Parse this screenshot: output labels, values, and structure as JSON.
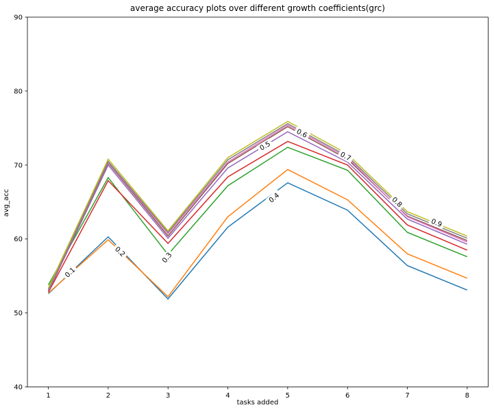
{
  "background_color": "#ffffff",
  "chart_data": {
    "type": "line",
    "title": "average accuracy plots over different growth coefficients(grc)",
    "xlabel": "tasks added",
    "ylabel": "avg_acc",
    "x": [
      1,
      2,
      3,
      4,
      5,
      6,
      7,
      8
    ],
    "xticks": [
      1,
      2,
      3,
      4,
      5,
      6,
      7,
      8
    ],
    "yticks": [
      40,
      50,
      60,
      70,
      80,
      90
    ],
    "xlim": [
      0.65,
      8.35
    ],
    "ylim": [
      40,
      90
    ],
    "grid": false,
    "legend_position": "inline line labels",
    "series": [
      {
        "name": "0.1",
        "color": "#1f77b4",
        "values": [
          52.6,
          60.3,
          51.9,
          61.6,
          67.6,
          63.9,
          56.4,
          53.1
        ],
        "label": {
          "x": 1.36,
          "y": 55.5,
          "angle": -44
        }
      },
      {
        "name": "0.2",
        "color": "#ff7f0e",
        "values": [
          52.7,
          59.9,
          52.2,
          63.0,
          69.4,
          65.3,
          58.0,
          54.7
        ],
        "label": {
          "x": 2.2,
          "y": 58.3,
          "angle": 44
        }
      },
      {
        "name": "0.3",
        "color": "#2ca02c",
        "values": [
          53.8,
          68.3,
          57.9,
          67.2,
          72.4,
          69.3,
          60.9,
          57.6
        ],
        "label": {
          "x": 2.98,
          "y": 57.5,
          "angle": -52
        }
      },
      {
        "name": "0.4",
        "color": "#d62728",
        "values": [
          52.8,
          67.9,
          59.4,
          68.4,
          73.2,
          70.0,
          61.9,
          58.5
        ],
        "label": {
          "x": 4.77,
          "y": 65.6,
          "angle": -40
        }
      },
      {
        "name": "0.5",
        "color": "#9467bd",
        "values": [
          52.9,
          70.0,
          60.1,
          69.6,
          74.5,
          70.4,
          62.7,
          59.3
        ],
        "label": {
          "x": 4.62,
          "y": 72.6,
          "angle": -31
        }
      },
      {
        "name": "0.6",
        "color": "#8c564b",
        "values": [
          53.0,
          70.3,
          60.4,
          70.2,
          75.2,
          70.8,
          63.1,
          59.8
        ],
        "label": {
          "x": 5.24,
          "y": 74.3,
          "angle": 28
        }
      },
      {
        "name": "0.7",
        "color": "#e377c2",
        "values": [
          53.1,
          70.4,
          60.7,
          70.4,
          75.4,
          71.0,
          63.0,
          59.6
        ],
        "label": {
          "x": 5.97,
          "y": 71.2,
          "angle": 28
        }
      },
      {
        "name": "0.8",
        "color": "#7f7f7f",
        "values": [
          53.2,
          70.5,
          60.9,
          70.7,
          75.6,
          71.2,
          63.4,
          60.1
        ],
        "label": {
          "x": 6.83,
          "y": 65.0,
          "angle": 44
        }
      },
      {
        "name": "0.9",
        "color": "#bcbd22",
        "values": [
          53.4,
          70.8,
          61.1,
          71.0,
          75.9,
          71.5,
          63.7,
          60.4
        ],
        "label": {
          "x": 7.49,
          "y": 62.2,
          "angle": 22
        }
      }
    ]
  }
}
